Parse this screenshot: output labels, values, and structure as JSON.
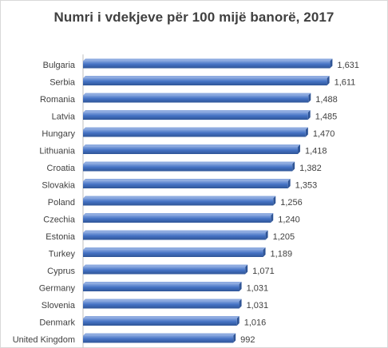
{
  "chart_data": {
    "type": "bar",
    "orientation": "horizontal",
    "title": "Numri i vdekjeve për 100 mijë banorë, 2017",
    "categories": [
      "Bulgaria",
      "Serbia",
      "Romania",
      "Latvia",
      "Hungary",
      "Lithuania",
      "Croatia",
      "Slovakia",
      "Poland",
      "Czechia",
      "Estonia",
      "Turkey",
      "Cyprus",
      "Germany",
      "Slovenia",
      "Denmark",
      "United Kingdom"
    ],
    "values": [
      1631,
      1611,
      1488,
      1485,
      1470,
      1418,
      1382,
      1353,
      1256,
      1240,
      1205,
      1189,
      1071,
      1031,
      1031,
      1016,
      992
    ],
    "value_labels": [
      "1,631",
      "1,611",
      "1,488",
      "1,485",
      "1,470",
      "1,418",
      "1,382",
      "1,353",
      "1,256",
      "1,240",
      "1,205",
      "1,189",
      "1,071",
      "1,031",
      "1,031",
      "1,016",
      "992"
    ],
    "xlabel": "",
    "ylabel": "",
    "xlim": [
      0,
      1650
    ],
    "grid": false,
    "legend": "none",
    "bar_color": "#4472c4",
    "bar_color_dark": "#2f5597"
  }
}
